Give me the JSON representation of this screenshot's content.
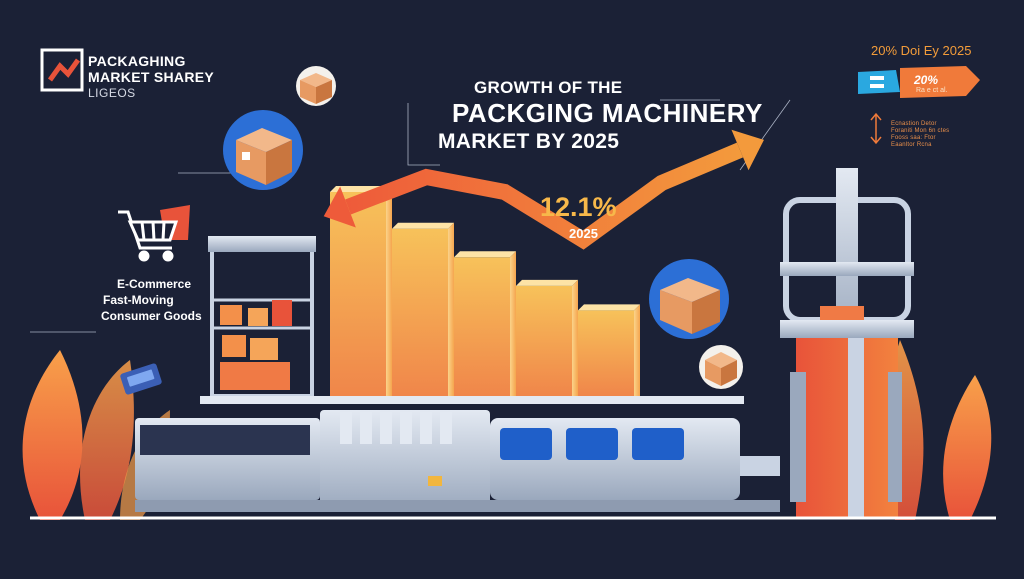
{
  "logo": {
    "line1": "PACKAGHING",
    "line2": "MARKET SHAREY",
    "line3": "LIGEOS"
  },
  "headline": {
    "line1": "GROWTH OF THE",
    "line2": "PACKGING MACHINERY",
    "line3": "MARKET BY 2025"
  },
  "growth": {
    "percent": "12.1%",
    "year": "2025"
  },
  "segments": {
    "line1": "E-Commerce",
    "line2": "Fast-Moving",
    "line3": "Consumer Goods"
  },
  "top_right": {
    "label": "20% Doi Ey 2025",
    "tag_value": "20%",
    "tag_sub": "Ra e ct al.",
    "minor_lines": [
      "Ecnastion Detor",
      "Foraniti Mon 6n ctes",
      "Fooss saa: Ftor",
      "Eaanltor Rcna"
    ]
  },
  "chart_data": {
    "type": "bar",
    "categories": [
      "",
      "",
      "",
      "",
      ""
    ],
    "values": [
      100,
      82,
      68,
      54,
      42
    ],
    "ylim": [
      0,
      100
    ],
    "grid": false,
    "trend_line": [
      62,
      82,
      72,
      40,
      78,
      100
    ],
    "annotation": "12.1%",
    "annotation_sub": "2025"
  },
  "colors": {
    "background": "#1b2136",
    "accent_orange": "#f29d3d",
    "accent_deep": "#e8533a",
    "machine_steel": "#c9d3e3"
  },
  "icons": [
    "logo-icon",
    "box-icon",
    "shopping-cart-icon",
    "trend-arrow-icon",
    "price-tag-icon",
    "leaf-icon"
  ]
}
